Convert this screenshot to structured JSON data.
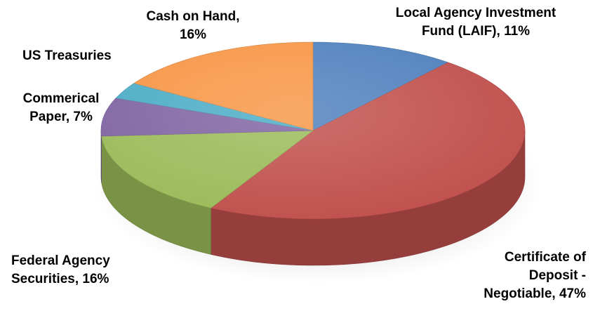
{
  "chart_data": {
    "type": "pie",
    "style": "3d",
    "legend": "none",
    "slices": [
      {
        "label_lines": [
          "Local Agency Investment",
          "Fund (LAIF), 11%"
        ],
        "value": 11,
        "color": "#4f81bd"
      },
      {
        "label_lines": [
          "Certificate of",
          "Deposit -",
          "Negotiable, 47%"
        ],
        "value": 47,
        "color": "#c0504d"
      },
      {
        "label_lines": [
          "Federal Agency",
          "Securities, 16%"
        ],
        "value": 16,
        "color": "#9bbb59"
      },
      {
        "label_lines": [
          "Commerical",
          "Paper, 7%"
        ],
        "value": 7,
        "color": "#8064a2"
      },
      {
        "label_lines": [
          "US Treasuries"
        ],
        "value": 3,
        "color": "#4bacc6"
      },
      {
        "label_lines": [
          "Cash on Hand,",
          "16%"
        ],
        "value": 16,
        "color": "#f79646"
      }
    ]
  }
}
